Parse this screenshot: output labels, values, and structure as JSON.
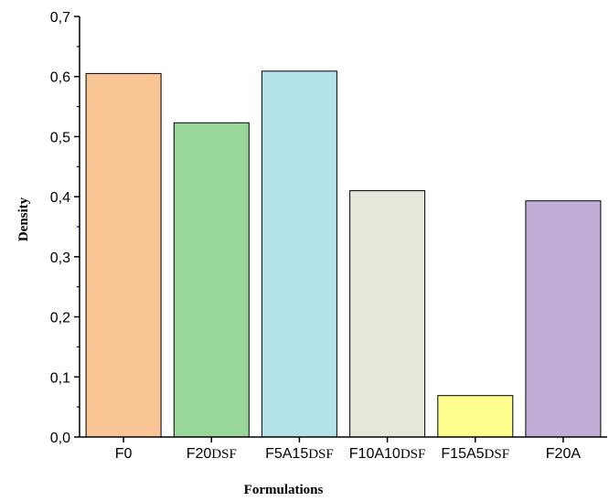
{
  "chart_data": {
    "type": "bar",
    "title": "",
    "xlabel": "Formulations",
    "ylabel": "Density",
    "ylim": [
      0,
      0.7
    ],
    "yticks": [
      "0,0",
      "0,1",
      "0,2",
      "0,3",
      "0,4",
      "0,5",
      "0,6",
      "0,7"
    ],
    "categories": [
      {
        "main": "F0",
        "sub": ""
      },
      {
        "main": "F20",
        "sub": "DSF"
      },
      {
        "main": "F5A15",
        "sub": "DSF"
      },
      {
        "main": "F10A10",
        "sub": "DSF"
      },
      {
        "main": "F15A5",
        "sub": "DSF"
      },
      {
        "main": "F20A",
        "sub": ""
      }
    ],
    "values": [
      0.605,
      0.523,
      0.609,
      0.41,
      0.069,
      0.393
    ],
    "colors": [
      "#f9c595",
      "#98d69a",
      "#b3e2e9",
      "#e6e6da",
      "#fdfd8e",
      "#c0aed6"
    ],
    "grid": false,
    "legend": "none"
  }
}
